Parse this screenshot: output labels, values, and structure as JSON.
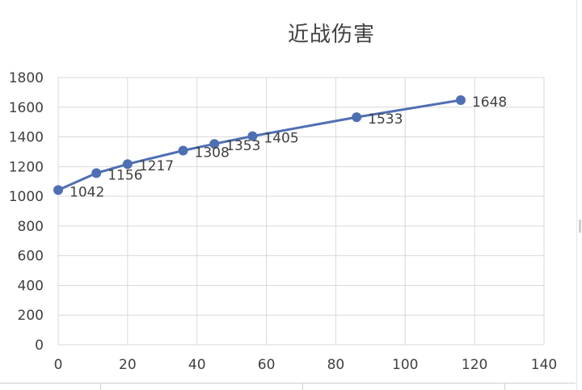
{
  "chart_data": {
    "type": "scatter",
    "title": "近战伤害",
    "xlim": [
      0,
      140
    ],
    "ylim": [
      0,
      1800
    ],
    "x_ticks": [
      "0",
      "20",
      "40",
      "60",
      "80",
      "100",
      "120",
      "140"
    ],
    "y_ticks": [
      "0",
      "200",
      "400",
      "600",
      "800",
      "1000",
      "1200",
      "1400",
      "1600",
      "1800"
    ],
    "grid": true,
    "line_color": "#4f6fb3",
    "series": [
      {
        "x": [
          0,
          11,
          20,
          36,
          45,
          56,
          86,
          116
        ],
        "y": [
          1042,
          1156,
          1217,
          1308,
          1353,
          1405,
          1533,
          1648
        ],
        "labels": [
          "1042",
          "1156",
          "1217",
          "1308",
          "1353",
          "1405",
          "1533",
          "1648"
        ]
      }
    ]
  }
}
